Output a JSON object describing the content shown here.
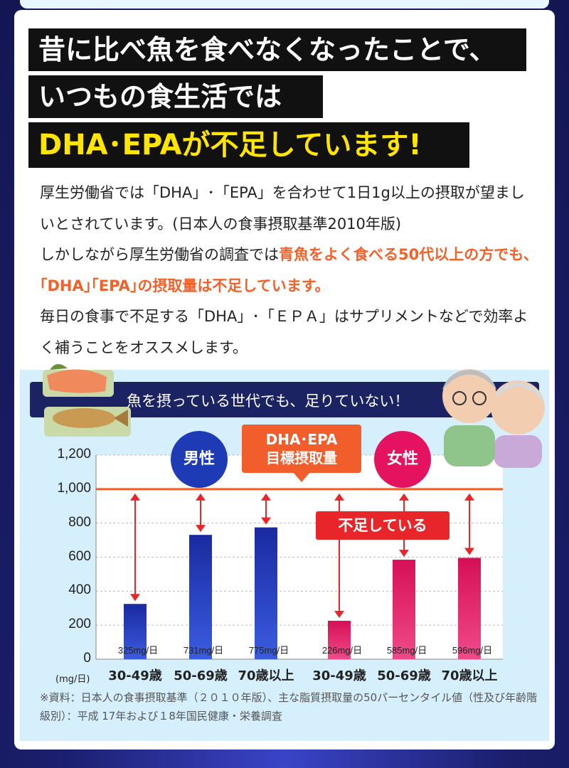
{
  "headline": {
    "line1": "昔に比べ魚を食べなくなったことで、",
    "line2": "いつもの食生活では",
    "line3": "DHA･EPAが不足しています!"
  },
  "body": {
    "p1": "厚生労働省では「DHA」･「EPA」を合わせて1日1g以上の摂取が望ましいとされています。(日本人の食事摂取基準2010年版)",
    "p2_pre": "しかしながら厚生労働省の調査では",
    "p2_hot": "青魚をよく食べる50代以上の方でも､｢DHA｣｢EPA｣の摂取量は不足しています。",
    "p3": "毎日の食事で不足する「DHA」･「ＥＰＡ」はサプリメントなどで効率よく補うことをオススメします。"
  },
  "banner": "魚を摂っている世代でも、足りていない！",
  "labels": {
    "male": "男性",
    "female": "女性",
    "target_line1": "DHA･EPA",
    "target_line2": "目標摂取量",
    "shortage": "不足している",
    "unit": "(mg/日)"
  },
  "source": "※資料：日本人の食事摂取基準（２０１０年版）、主な脂質摂取量の50パーセンタイル値（性及び年齢階級別）：平成 17年および１8年国民健康・栄養調査",
  "colors": {
    "male": "#1e3bb5",
    "female": "#e5135f",
    "target": "#f25d2c",
    "arrow": "#e8262a"
  },
  "chart_data": {
    "type": "bar",
    "categories": [
      "30-49歳",
      "50-69歳",
      "70歳以上",
      "30-49歳",
      "50-69歳",
      "70歳以上"
    ],
    "groups": [
      "男性",
      "男性",
      "男性",
      "女性",
      "女性",
      "女性"
    ],
    "values": [
      325,
      731,
      775,
      226,
      585,
      596
    ],
    "value_labels": [
      "325mg/日",
      "731mg/日",
      "775mg/日",
      "226mg/日",
      "585mg/日",
      "596mg/日"
    ],
    "target": 1000,
    "yticks": [
      "1,200",
      "1,000",
      "800",
      "600",
      "400",
      "200",
      "0"
    ],
    "ylim": [
      0,
      1200
    ]
  }
}
